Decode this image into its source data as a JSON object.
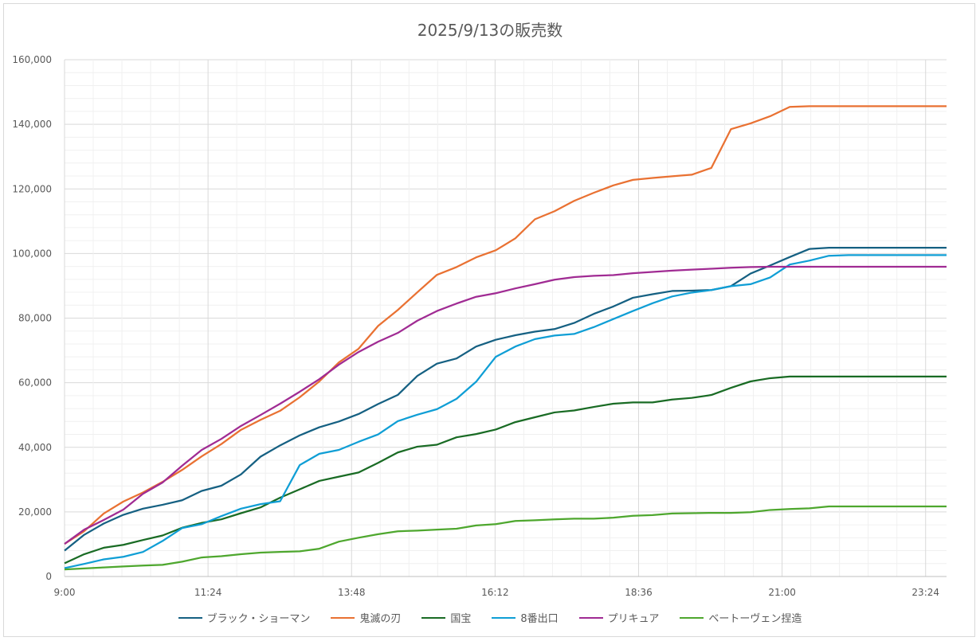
{
  "chart_data": {
    "type": "line",
    "title": "2025/9/13の販売数",
    "xlabel": "",
    "ylabel": "",
    "x_start": "9:00",
    "x_end": "23:45",
    "x_range_hours": [
      9,
      23.75
    ],
    "ylim": [
      0,
      160000
    ],
    "y_ticks": [
      "0",
      "20,000",
      "40,000",
      "60,000",
      "80,000",
      "100,000",
      "120,000",
      "140,000",
      "160,000"
    ],
    "x_ticks": [
      "9:00",
      "11:24",
      "13:48",
      "16:12",
      "18:36",
      "21:00",
      "23:24"
    ],
    "grid": true,
    "legend_position": "bottom",
    "series": [
      {
        "name": "ブラック・ショーマン",
        "color": "#156082",
        "values": [
          8000,
          12900,
          16400,
          19100,
          21000,
          22200,
          23600,
          26500,
          28100,
          31600,
          37100,
          40600,
          43700,
          46200,
          48000,
          50300,
          53400,
          56200,
          62100,
          65900,
          67500,
          71200,
          73300,
          74700,
          75800,
          76600,
          78500,
          81300,
          83600,
          86300,
          87400,
          88400,
          88500,
          88700,
          89900,
          93800,
          96300,
          98900,
          101400,
          101800,
          101800,
          101800,
          101800,
          101800,
          101800,
          101800
        ]
      },
      {
        "name": "鬼滅の刃",
        "color": "#E97132",
        "values": [
          10100,
          14000,
          19500,
          23200,
          26000,
          29300,
          33000,
          37200,
          41000,
          45400,
          48500,
          51300,
          55500,
          60400,
          66300,
          70500,
          77600,
          82500,
          88000,
          93400,
          95800,
          98800,
          101000,
          104700,
          110600,
          113100,
          116300,
          118800,
          121100,
          122800,
          123400,
          123900,
          124400,
          126500,
          138500,
          140300,
          142500,
          145400,
          145600,
          145600,
          145600,
          145600,
          145600,
          145600,
          145600,
          145600
        ]
      },
      {
        "name": "国宝",
        "color": "#196B24",
        "values": [
          4100,
          6900,
          8900,
          9800,
          11300,
          12700,
          15100,
          16600,
          17700,
          19600,
          21400,
          24400,
          27000,
          29600,
          30900,
          32200,
          35200,
          38400,
          40200,
          40800,
          43100,
          44100,
          45500,
          47800,
          49300,
          50800,
          51400,
          52500,
          53500,
          53900,
          53900,
          54800,
          55300,
          56200,
          58400,
          60400,
          61400,
          61900,
          61900,
          61900,
          61900,
          61900,
          61900,
          61900,
          61900,
          61900
        ]
      },
      {
        "name": "8番出口",
        "color": "#0F9ED5",
        "values": [
          2600,
          3900,
          5300,
          6100,
          7600,
          11000,
          15000,
          16200,
          18700,
          21000,
          22400,
          23300,
          34500,
          38000,
          39200,
          41700,
          44000,
          48100,
          50100,
          51800,
          55000,
          60300,
          68000,
          71200,
          73500,
          74600,
          75100,
          77200,
          79700,
          82200,
          84600,
          86700,
          87900,
          88700,
          89900,
          90500,
          92600,
          96600,
          97800,
          99300,
          99500,
          99500,
          99500,
          99500,
          99500,
          99500
        ]
      },
      {
        "name": "プリキュア",
        "color": "#A02B93",
        "values": [
          10100,
          14500,
          17500,
          20700,
          25600,
          29100,
          34300,
          39200,
          42600,
          46600,
          50000,
          53500,
          57200,
          61100,
          65600,
          69500,
          72700,
          75400,
          79200,
          82200,
          84500,
          86600,
          87700,
          89200,
          90500,
          91900,
          92700,
          93100,
          93300,
          93900,
          94300,
          94700,
          95000,
          95300,
          95600,
          95800,
          95900,
          95900,
          95900,
          95900,
          95900,
          95900,
          95900,
          95900,
          95900,
          95900
        ]
      },
      {
        "name": "ベートーヴェン捏造",
        "color": "#4EA72E",
        "values": [
          2200,
          2500,
          2800,
          3100,
          3400,
          3600,
          4600,
          5900,
          6300,
          6900,
          7400,
          7600,
          7800,
          8600,
          10800,
          12000,
          13100,
          14000,
          14200,
          14500,
          14800,
          15800,
          16200,
          17200,
          17400,
          17700,
          17900,
          17900,
          18200,
          18800,
          19000,
          19500,
          19600,
          19700,
          19700,
          19900,
          20600,
          20900,
          21100,
          21700,
          21700,
          21700,
          21700,
          21700,
          21700,
          21700
        ]
      }
    ]
  }
}
